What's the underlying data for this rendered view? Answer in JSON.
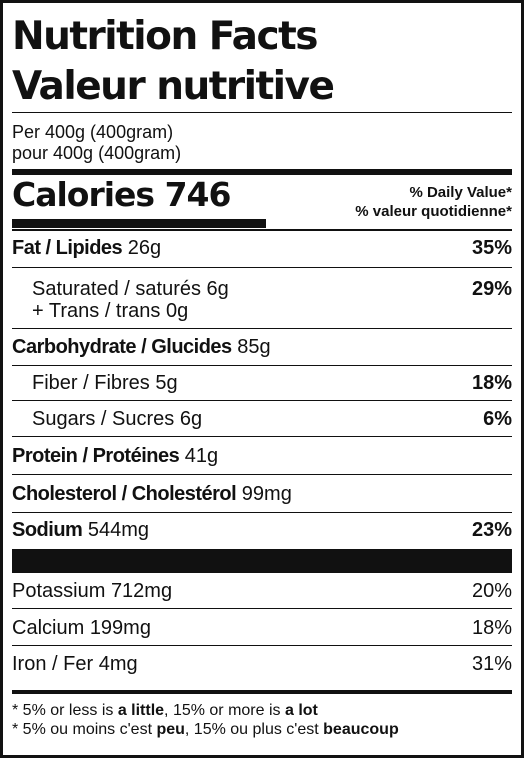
{
  "title_en": "Nutrition Facts",
  "title_fr": "Valeur nutritive",
  "serving_en": "Per 400g (400gram)",
  "serving_fr": "pour 400g (400gram)",
  "calories_label": "Calories",
  "calories_value": "746",
  "dv_header_en": "% Daily Value*",
  "dv_header_fr": "% valeur quotidienne*",
  "fat": {
    "label": "Fat / Lipides",
    "amount": "26g",
    "pct": "35%"
  },
  "saturated": {
    "label": "Saturated / saturés",
    "amount": "6g",
    "pct": "29%"
  },
  "trans": {
    "label": "+ Trans / trans",
    "amount": "0g"
  },
  "carbohydrate": {
    "label": "Carbohydrate / Glucides",
    "amount": "85g"
  },
  "fiber": {
    "label": "Fiber / Fibres",
    "amount": "5g",
    "pct": "18%"
  },
  "sugars": {
    "label": "Sugars / Sucres",
    "amount": "6g",
    "pct": "6%"
  },
  "protein": {
    "label": "Protein / Protéines",
    "amount": "41g"
  },
  "cholesterol": {
    "label": "Cholesterol / Cholestérol",
    "amount": "99mg"
  },
  "sodium": {
    "label": "Sodium",
    "amount": "544mg",
    "pct": "23%"
  },
  "potassium": {
    "label": "Potassium",
    "amount": "712mg",
    "pct": "20%"
  },
  "calcium": {
    "label": "Calcium",
    "amount": "199mg",
    "pct": "18%"
  },
  "iron": {
    "label": "Iron / Fer",
    "amount": "4mg",
    "pct": "31%"
  },
  "footnote_en": {
    "a": "* 5% or less is ",
    "b": "a little",
    "c": ", 15% or more is ",
    "d": "a lot"
  },
  "footnote_fr": {
    "a": "* 5% ou moins c'est ",
    "b": "peu",
    "c": ", 15% ou plus c'est ",
    "d": "beaucoup"
  },
  "colors": {
    "ink": "#111111",
    "background": "#ffffff"
  }
}
